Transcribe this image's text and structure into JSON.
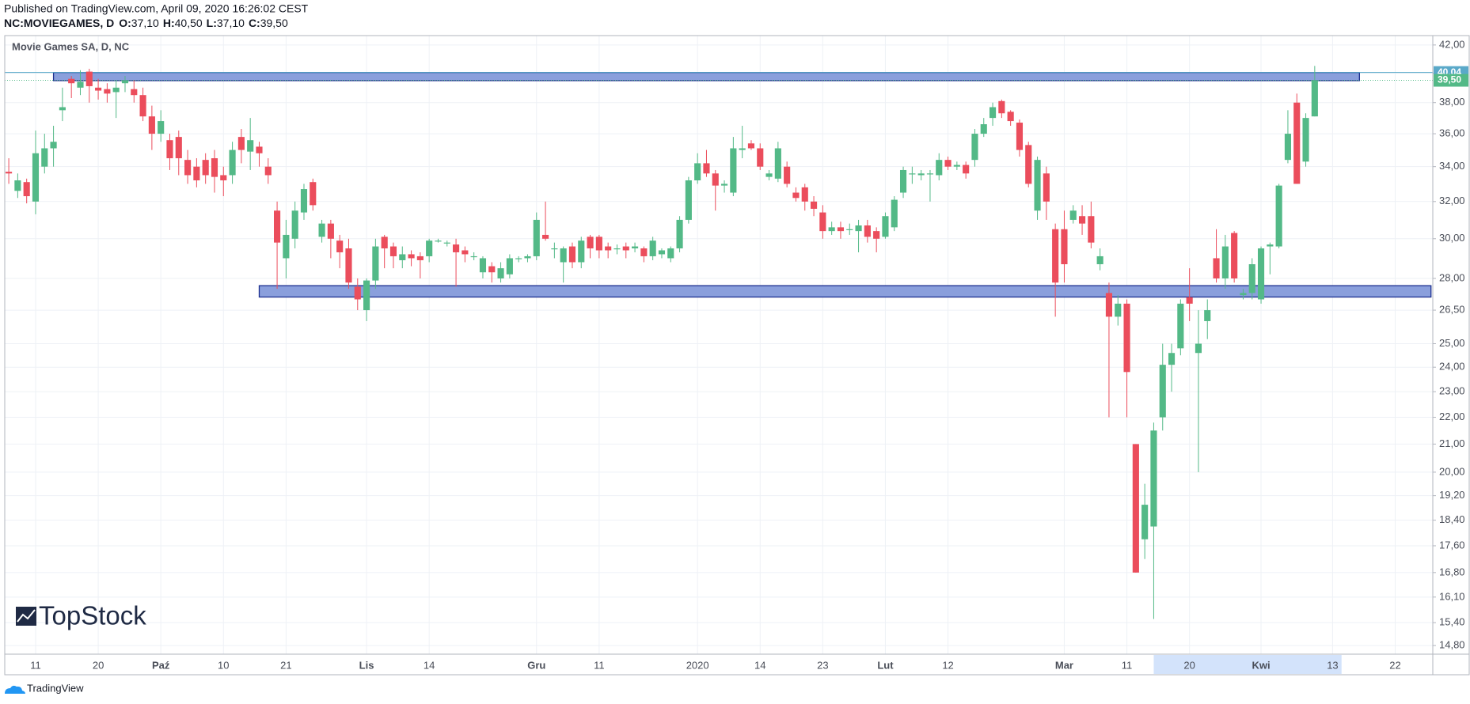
{
  "header": {
    "published": "Published on TradingView.com, April 09, 2020 16:26:02 CEST",
    "symbol": "NC:MOVIEGAMES, D",
    "ohlc": [
      {
        "key": "O:",
        "value": "37,10"
      },
      {
        "key": "H:",
        "value": "40,50"
      },
      {
        "key": "L:",
        "value": "37,10"
      },
      {
        "key": "C:",
        "value": "39,50"
      }
    ]
  },
  "watermark": "TopStock",
  "footer": "TradingView",
  "chart_data": {
    "type": "candlestick",
    "title": "Movie Games SA, D, NC",
    "log_scale": true,
    "grid": true,
    "up_color": "#53b987",
    "down_color": "#eb4d5c",
    "x": [
      "2019-09-06",
      "2019-09-09",
      "2019-09-10",
      "2019-09-11",
      "2019-09-12",
      "2019-09-13",
      "2019-09-16",
      "2019-09-17",
      "2019-09-18",
      "2019-09-19",
      "2019-09-20",
      "2019-09-23",
      "2019-09-24",
      "2019-09-25",
      "2019-09-26",
      "2019-09-27",
      "2019-09-30",
      "2019-10-01",
      "2019-10-02",
      "2019-10-03",
      "2019-10-04",
      "2019-10-07",
      "2019-10-08",
      "2019-10-09",
      "2019-10-10",
      "2019-10-11",
      "2019-10-14",
      "2019-10-15",
      "2019-10-16",
      "2019-10-17",
      "2019-10-18",
      "2019-10-21",
      "2019-10-22",
      "2019-10-23",
      "2019-10-24",
      "2019-10-25",
      "2019-10-28",
      "2019-10-29",
      "2019-10-30",
      "2019-10-31",
      "2019-11-04",
      "2019-11-05",
      "2019-11-06",
      "2019-11-07",
      "2019-11-08",
      "2019-11-12",
      "2019-11-13",
      "2019-11-14",
      "2019-11-15",
      "2019-11-18",
      "2019-11-19",
      "2019-11-20",
      "2019-11-21",
      "2019-11-22",
      "2019-11-25",
      "2019-11-26",
      "2019-11-27",
      "2019-11-28",
      "2019-11-29",
      "2019-12-02",
      "2019-12-03",
      "2019-12-04",
      "2019-12-05",
      "2019-12-06",
      "2019-12-09",
      "2019-12-10",
      "2019-12-11",
      "2019-12-12",
      "2019-12-13",
      "2019-12-16",
      "2019-12-17",
      "2019-12-18",
      "2019-12-19",
      "2019-12-20",
      "2019-12-23",
      "2019-12-27",
      "2019-12-30",
      "2020-01-02",
      "2020-01-03",
      "2020-01-07",
      "2020-01-08",
      "2020-01-09",
      "2020-01-10",
      "2020-01-13",
      "2020-01-14",
      "2020-01-15",
      "2020-01-16",
      "2020-01-17",
      "2020-01-20",
      "2020-01-21",
      "2020-01-22",
      "2020-01-23",
      "2020-01-24",
      "2020-01-27",
      "2020-01-28",
      "2020-01-29",
      "2020-01-30",
      "2020-01-31",
      "2020-02-03",
      "2020-02-04",
      "2020-02-05",
      "2020-02-06",
      "2020-02-07",
      "2020-02-10",
      "2020-02-11",
      "2020-02-12",
      "2020-02-13",
      "2020-02-14",
      "2020-02-17",
      "2020-02-18",
      "2020-02-19",
      "2020-02-20",
      "2020-02-21",
      "2020-02-24",
      "2020-02-25",
      "2020-02-26",
      "2020-02-27",
      "2020-02-28",
      "2020-03-02",
      "2020-03-03",
      "2020-03-04",
      "2020-03-05",
      "2020-03-06",
      "2020-03-09",
      "2020-03-10",
      "2020-03-11",
      "2020-03-12",
      "2020-03-13",
      "2020-03-16",
      "2020-03-17",
      "2020-03-18",
      "2020-03-19",
      "2020-03-20",
      "2020-03-23",
      "2020-03-24",
      "2020-03-25",
      "2020-03-26",
      "2020-03-27",
      "2020-03-30",
      "2020-03-31",
      "2020-04-01",
      "2020-04-02",
      "2020-04-03",
      "2020-04-06",
      "2020-04-07",
      "2020-04-08",
      "2020-04-09"
    ],
    "open": [
      33.7,
      32.6,
      33.1,
      32.0,
      34.0,
      35.1,
      37.5,
      39.6,
      39.0,
      40.1,
      39.0,
      38.9,
      38.7,
      39.3,
      38.9,
      38.5,
      37.1,
      36.0,
      35.6,
      35.8,
      34.4,
      34.0,
      34.4,
      34.5,
      33.5,
      33.5,
      35.8,
      34.9,
      35.2,
      34.0,
      31.5,
      29.0,
      30.0,
      31.4,
      33.1,
      30.1,
      30.8,
      29.9,
      29.5,
      27.6,
      26.5,
      27.9,
      30.1,
      29.6,
      28.9,
      29.2,
      29.1,
      29.1,
      29.9,
      29.8,
      29.7,
      29.4,
      29.1,
      28.3,
      28.6,
      28.0,
      28.2,
      29.0,
      29.0,
      29.1,
      30.2,
      29.5,
      28.8,
      29.6,
      28.8,
      30.1,
      30.1,
      29.6,
      29.5,
      29.6,
      29.5,
      29.5,
      29.1,
      29.2,
      29.0,
      29.5,
      31.0,
      33.2,
      34.2,
      33.6,
      32.9,
      32.5,
      35.0,
      35.4,
      35.1,
      33.4,
      33.3,
      34.0,
      32.5,
      32.8,
      32.0,
      31.4,
      30.4,
      30.6,
      30.5,
      30.4,
      30.7,
      30.4,
      30.1,
      30.6,
      32.5,
      33.6,
      33.5,
      33.6,
      33.5,
      34.4,
      34.0,
      34.1,
      34.4,
      36.0,
      37.0,
      38.1,
      37.4,
      36.7,
      35.3,
      31.5,
      33.6,
      30.5,
      30.5,
      31.0,
      31.2,
      31.2,
      28.7,
      27.3,
      26.2,
      26.8,
      21.0,
      17.8,
      18.2,
      22.0,
      24.1,
      24.8,
      27.1,
      24.6,
      26.0,
      29.0,
      28.0,
      30.3,
      27.2,
      27.3,
      27.0,
      29.6,
      29.6,
      34.4,
      38.0,
      34.3,
      37.1
    ],
    "high": [
      34.5,
      33.6,
      33.3,
      36.2,
      36.0,
      36.5,
      39.0,
      39.8,
      40.2,
      40.3,
      39.6,
      39.3,
      39.5,
      39.8,
      39.5,
      39.0,
      37.8,
      37.5,
      36.0,
      36.2,
      35.0,
      34.5,
      34.8,
      35.0,
      34.0,
      35.5,
      36.3,
      37.0,
      35.5,
      34.5,
      32.0,
      31.0,
      32.0,
      33.0,
      33.3,
      31.0,
      31.0,
      30.2,
      30.0,
      28.0,
      28.0,
      30.0,
      30.2,
      29.8,
      29.6,
      29.4,
      29.3,
      30.0,
      30.0,
      29.9,
      30.0,
      29.6,
      29.3,
      29.1,
      28.8,
      28.8,
      29.2,
      29.1,
      29.2,
      31.4,
      32.0,
      29.8,
      29.6,
      29.8,
      30.1,
      30.2,
      30.2,
      29.8,
      29.7,
      29.8,
      29.8,
      29.6,
      30.1,
      29.5,
      29.6,
      31.2,
      33.4,
      34.8,
      35.0,
      33.8,
      33.2,
      35.8,
      36.5,
      35.6,
      35.4,
      33.8,
      35.5,
      34.3,
      32.8,
      33.0,
      32.3,
      31.8,
      30.9,
      30.9,
      30.8,
      31.0,
      31.0,
      30.6,
      31.4,
      32.3,
      34.0,
      34.0,
      33.8,
      33.8,
      34.8,
      34.6,
      34.3,
      34.3,
      36.3,
      37.0,
      38.0,
      38.2,
      37.5,
      36.9,
      35.5,
      34.6,
      34.0,
      30.8,
      31.5,
      31.8,
      31.8,
      32.0,
      29.5,
      27.8,
      27.2,
      27.0,
      21.0,
      19.6,
      21.8,
      25.0,
      25.0,
      27.0,
      28.5,
      26.5,
      27.0,
      30.5,
      30.2,
      30.4,
      27.5,
      29.0,
      29.6,
      29.8,
      33.0,
      37.5,
      38.6,
      37.3,
      40.5
    ],
    "low": [
      33.0,
      32.2,
      31.9,
      31.3,
      33.6,
      34.0,
      36.8,
      38.3,
      38.5,
      38.0,
      38.2,
      38.0,
      37.0,
      38.7,
      38.0,
      36.8,
      35.0,
      35.5,
      33.8,
      33.5,
      33.0,
      32.8,
      33.0,
      32.5,
      32.3,
      33.0,
      34.2,
      33.8,
      34.0,
      33.0,
      27.5,
      28.0,
      29.5,
      31.0,
      31.5,
      29.8,
      29.0,
      28.5,
      27.5,
      26.5,
      26.0,
      27.5,
      28.5,
      28.5,
      28.5,
      28.6,
      28.0,
      28.8,
      29.8,
      29.6,
      27.6,
      28.8,
      28.9,
      28.0,
      27.8,
      27.8,
      28.0,
      28.8,
      28.8,
      28.9,
      29.9,
      29.0,
      27.8,
      28.5,
      28.5,
      29.0,
      29.0,
      29.0,
      29.2,
      29.0,
      29.3,
      28.8,
      28.9,
      29.0,
      28.8,
      29.3,
      30.8,
      33.0,
      33.4,
      31.5,
      32.5,
      32.3,
      34.5,
      35.0,
      33.8,
      33.2,
      33.1,
      32.8,
      32.0,
      31.5,
      31.2,
      30.0,
      30.2,
      30.0,
      30.2,
      29.3,
      29.8,
      29.3,
      30.0,
      30.4,
      32.2,
      33.0,
      33.2,
      32.0,
      33.2,
      33.8,
      33.8,
      33.3,
      34.0,
      35.8,
      36.5,
      37.0,
      36.5,
      34.6,
      32.8,
      31.0,
      31.0,
      26.2,
      27.8,
      30.8,
      30.2,
      29.5,
      28.4,
      22.0,
      25.8,
      22.0,
      16.8,
      17.2,
      15.5,
      21.5,
      23.0,
      24.5,
      26.0,
      20.0,
      25.2,
      27.8,
      27.5,
      27.8,
      27.0,
      27.0,
      26.8,
      28.2,
      29.5,
      34.2,
      33.0,
      34.0,
      37.1
    ],
    "close": [
      33.6,
      33.2,
      32.3,
      34.8,
      35.1,
      35.5,
      37.7,
      39.3,
      39.4,
      39.1,
      38.8,
      38.6,
      39.0,
      39.5,
      38.5,
      37.1,
      36.0,
      36.8,
      34.5,
      34.5,
      33.5,
      33.2,
      33.5,
      33.4,
      33.2,
      35.0,
      35.0,
      35.6,
      34.8,
      33.5,
      29.8,
      30.2,
      31.5,
      32.7,
      31.8,
      30.8,
      30.0,
      29.3,
      27.8,
      27.0,
      27.9,
      29.6,
      29.5,
      29.1,
      29.2,
      29.0,
      28.9,
      29.9,
      29.9,
      29.8,
      29.3,
      29.2,
      29.1,
      29.0,
      28.3,
      28.5,
      29.0,
      29.0,
      29.1,
      31.0,
      30.0,
      29.5,
      29.5,
      28.8,
      29.9,
      29.5,
      29.4,
      29.4,
      29.5,
      29.4,
      29.6,
      29.1,
      29.9,
      29.4,
      29.5,
      31.0,
      33.2,
      34.2,
      33.6,
      32.9,
      33.0,
      35.1,
      35.1,
      35.1,
      34.0,
      33.6,
      35.1,
      33.0,
      32.2,
      32.0,
      31.6,
      30.4,
      30.6,
      30.4,
      30.5,
      30.7,
      30.1,
      30.0,
      31.2,
      32.1,
      33.8,
      33.6,
      33.6,
      33.6,
      34.4,
      34.0,
      34.1,
      33.6,
      36.0,
      36.6,
      37.7,
      37.3,
      36.8,
      35.0,
      33.0,
      34.4,
      32.0,
      27.8,
      28.7,
      31.5,
      30.8,
      29.8,
      29.1,
      26.2,
      26.8,
      23.8,
      16.8,
      18.9,
      21.5,
      24.1,
      24.6,
      26.8,
      26.8,
      25.0,
      26.5,
      28.0,
      29.6,
      28.0,
      27.3,
      28.7,
      29.5,
      29.7,
      32.9,
      36.0,
      33.0,
      37.0,
      39.5
    ],
    "xlim": [
      "2019-09-06",
      "2020-04-28"
    ],
    "xticks": [
      {
        "value": "2019-09-11",
        "label": "11"
      },
      {
        "value": "2019-09-20",
        "label": "20"
      },
      {
        "value": "2019-10-01",
        "label": "Paź"
      },
      {
        "value": "2019-10-10",
        "label": "10"
      },
      {
        "value": "2019-10-21",
        "label": "21"
      },
      {
        "value": "2019-11-04",
        "label": "Lis"
      },
      {
        "value": "2019-11-14",
        "label": "14"
      },
      {
        "value": "2019-12-02",
        "label": "Gru"
      },
      {
        "value": "2019-12-11",
        "label": "11"
      },
      {
        "value": "2020-01-02",
        "label": "2020"
      },
      {
        "value": "2020-01-14",
        "label": "14"
      },
      {
        "value": "2020-01-23",
        "label": "23"
      },
      {
        "value": "2020-02-03",
        "label": "Lut"
      },
      {
        "value": "2020-02-12",
        "label": "12"
      },
      {
        "value": "2020-03-02",
        "label": "Mar"
      },
      {
        "value": "2020-03-11",
        "label": "11"
      },
      {
        "value": "2020-03-20",
        "label": "20"
      },
      {
        "value": "2020-04-01",
        "label": "Kwi"
      },
      {
        "value": "2020-04-13",
        "label": "13"
      },
      {
        "value": "2020-04-22",
        "label": "22"
      }
    ],
    "x_highlight": [
      "2020-03-16",
      "2020-04-14"
    ],
    "ylim": [
      14.58,
      42.69
    ],
    "yticks": [
      {
        "value": 14.8,
        "label": "14,80"
      },
      {
        "value": 15.4,
        "label": "15,40"
      },
      {
        "value": 16.1,
        "label": "16,10"
      },
      {
        "value": 16.8,
        "label": "16,80"
      },
      {
        "value": 17.6,
        "label": "17,60"
      },
      {
        "value": 18.4,
        "label": "18,40"
      },
      {
        "value": 19.2,
        "label": "19,20"
      },
      {
        "value": 20,
        "label": "20,00"
      },
      {
        "value": 21,
        "label": "21,00"
      },
      {
        "value": 22,
        "label": "22,00"
      },
      {
        "value": 23,
        "label": "23,00"
      },
      {
        "value": 24,
        "label": "24,00"
      },
      {
        "value": 25,
        "label": "25,00"
      },
      {
        "value": 26.5,
        "label": "26,50"
      },
      {
        "value": 28,
        "label": "28,00"
      },
      {
        "value": 30,
        "label": "30,00"
      },
      {
        "value": 32,
        "label": "32,00"
      },
      {
        "value": 34,
        "label": "34,00"
      },
      {
        "value": 36,
        "label": "36,00"
      },
      {
        "value": 38,
        "label": "38,00"
      },
      {
        "value": 40,
        "label": "40,00"
      },
      {
        "value": 42,
        "label": "42,00"
      }
    ],
    "zones": [
      {
        "start": "2019-09-13",
        "end": "2020-04-16",
        "top": 40.04,
        "bottom": 39.48,
        "color": "#8a9fdc"
      },
      {
        "start": "2019-10-16",
        "end": "2020-04-28",
        "top": 27.65,
        "bottom": 27.11,
        "color": "#8a9fdc"
      }
    ],
    "price_lines": [
      {
        "value": 40.04,
        "label": "40,04",
        "color": "#5aa9c9",
        "style": "solid"
      },
      {
        "value": 39.5,
        "label": "39,50",
        "color": "#53b987",
        "style": "dotted"
      }
    ]
  }
}
